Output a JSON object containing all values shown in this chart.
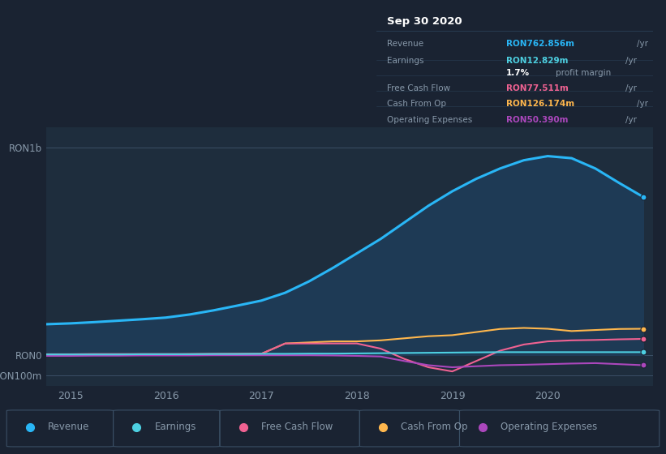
{
  "background_color": "#1a2332",
  "plot_bg_color": "#1e2d3d",
  "grid_color": "#3a4f65",
  "text_color": "#8899aa",
  "title_color": "#ffffff",
  "years": [
    2014.75,
    2015.0,
    2015.25,
    2015.5,
    2015.75,
    2016.0,
    2016.25,
    2016.5,
    2016.75,
    2017.0,
    2017.25,
    2017.5,
    2017.75,
    2018.0,
    2018.25,
    2018.5,
    2018.75,
    2019.0,
    2019.25,
    2019.5,
    2019.75,
    2020.0,
    2020.25,
    2020.5,
    2020.75,
    2021.0
  ],
  "revenue": [
    148,
    152,
    158,
    165,
    172,
    180,
    195,
    215,
    238,
    262,
    300,
    355,
    420,
    490,
    560,
    640,
    720,
    790,
    850,
    900,
    940,
    960,
    950,
    900,
    830,
    763
  ],
  "earnings": [
    2,
    2,
    2,
    2,
    3,
    3,
    3,
    4,
    4,
    5,
    5,
    6,
    6,
    7,
    8,
    9,
    10,
    11,
    12,
    13,
    13,
    13,
    13,
    13,
    13,
    13
  ],
  "free_cash_flow": [
    3,
    3,
    4,
    4,
    4,
    4,
    4,
    5,
    5,
    5,
    55,
    55,
    55,
    55,
    30,
    -20,
    -60,
    -80,
    -30,
    20,
    50,
    65,
    70,
    72,
    75,
    77
  ],
  "cash_from_op": [
    2,
    2,
    2,
    2,
    2,
    2,
    3,
    3,
    4,
    5,
    55,
    60,
    65,
    65,
    70,
    80,
    90,
    95,
    110,
    125,
    130,
    126,
    115,
    120,
    125,
    126
  ],
  "operating_expenses": [
    -5,
    -5,
    -4,
    -4,
    -3,
    -3,
    -3,
    -2,
    -2,
    -2,
    -2,
    -2,
    -3,
    -5,
    -8,
    -30,
    -50,
    -60,
    -55,
    -50,
    -48,
    -45,
    -42,
    -40,
    -45,
    -50
  ],
  "revenue_color": "#29b6f6",
  "earnings_color": "#4dd0e1",
  "free_cash_flow_color": "#f06292",
  "cash_from_op_color": "#ffb74d",
  "operating_expenses_color": "#ab47bc",
  "revenue_fill": "#1e3a55",
  "ylim": [
    -150,
    1100
  ],
  "xlim": [
    2014.75,
    2021.1
  ],
  "ytick_labels": [
    "RON1b",
    "RON0",
    "-RON100m"
  ],
  "ytick_values": [
    1000,
    0,
    -100
  ],
  "xtick_labels": [
    "2015",
    "2016",
    "2017",
    "2018",
    "2019",
    "2020"
  ],
  "xtick_values": [
    2015,
    2016,
    2017,
    2018,
    2019,
    2020
  ],
  "tooltip_title": "Sep 30 2020",
  "tooltip_rows": [
    {
      "label": "Revenue",
      "value": "RON762.856m",
      "unit": "/yr",
      "color": "#29b6f6"
    },
    {
      "label": "Earnings",
      "value": "RON12.829m",
      "unit": "/yr",
      "color": "#4dd0e1"
    },
    {
      "label": "",
      "value": "1.7%",
      "unit": "profit margin",
      "color": "#ffffff"
    },
    {
      "label": "Free Cash Flow",
      "value": "RON77.511m",
      "unit": "/yr",
      "color": "#f06292"
    },
    {
      "label": "Cash From Op",
      "value": "RON126.174m",
      "unit": "/yr",
      "color": "#ffb74d"
    },
    {
      "label": "Operating Expenses",
      "value": "RON50.390m",
      "unit": "/yr",
      "color": "#ab47bc"
    }
  ],
  "legend_items": [
    {
      "label": "Revenue",
      "color": "#29b6f6"
    },
    {
      "label": "Earnings",
      "color": "#4dd0e1"
    },
    {
      "label": "Free Cash Flow",
      "color": "#f06292"
    },
    {
      "label": "Cash From Op",
      "color": "#ffb74d"
    },
    {
      "label": "Operating Expenses",
      "color": "#ab47bc"
    }
  ]
}
